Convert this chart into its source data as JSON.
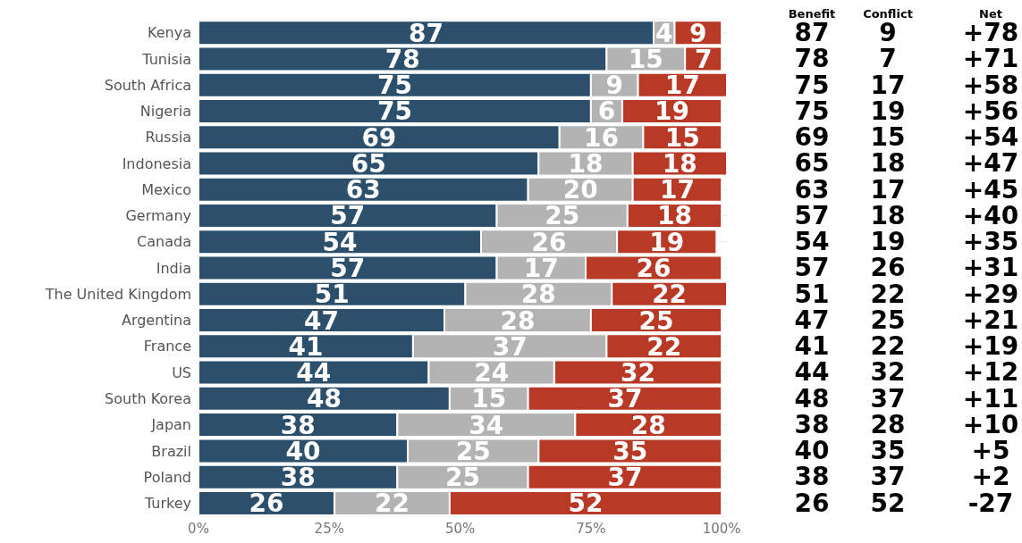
{
  "chart_data": {
    "type": "bar",
    "orientation": "horizontal",
    "stacked": true,
    "data_labels": true,
    "grid": "y",
    "categories": [
      "Kenya",
      "Tunisia",
      "South Africa",
      "Nigeria",
      "Russia",
      "Indonesia",
      "Mexico",
      "Germany",
      "Canada",
      "India",
      "The United Kingdom",
      "Argentina",
      "France",
      "US",
      "South Korea",
      "Japan",
      "Brazil",
      "Poland",
      "Turkey"
    ],
    "series": [
      {
        "color": "#2c4f6b",
        "values": [
          87,
          78,
          75,
          75,
          69,
          65,
          63,
          57,
          54,
          57,
          51,
          47,
          41,
          44,
          48,
          38,
          40,
          38,
          26
        ]
      },
      {
        "color": "#b3b3b3",
        "values": [
          4,
          15,
          9,
          6,
          16,
          18,
          20,
          25,
          26,
          17,
          28,
          28,
          37,
          24,
          15,
          34,
          25,
          25,
          22
        ]
      },
      {
        "color": "#b83a26",
        "values": [
          9,
          7,
          17,
          19,
          15,
          18,
          17,
          18,
          19,
          26,
          22,
          25,
          22,
          32,
          37,
          28,
          35,
          37,
          52
        ]
      }
    ],
    "xlim": [
      0,
      101
    ],
    "xticks": [
      {
        "value": 0,
        "label": "0%"
      },
      {
        "value": 25,
        "label": "25%"
      },
      {
        "value": 50,
        "label": "50%"
      },
      {
        "value": 75,
        "label": "75%"
      },
      {
        "value": 100,
        "label": "100%"
      }
    ],
    "annotations": [
      "Benefit",
      "Conflict",
      "Net",
      "87",
      "9",
      "+78",
      "78",
      "7",
      "+71",
      "75",
      "17",
      "+58",
      "75",
      "19",
      "+56",
      "69",
      "15",
      "+54",
      "65",
      "18",
      "+47",
      "63",
      "17",
      "+45",
      "57",
      "18",
      "+40",
      "54",
      "19",
      "+35",
      "57",
      "26",
      "+31",
      "51",
      "22",
      "+29",
      "47",
      "25",
      "+21",
      "41",
      "22",
      "+19",
      "44",
      "32",
      "+12",
      "48",
      "37",
      "+11",
      "38",
      "28",
      "+10",
      "40",
      "35",
      "+5",
      "38",
      "37",
      "+2",
      "26",
      "52",
      "-27"
    ]
  }
}
